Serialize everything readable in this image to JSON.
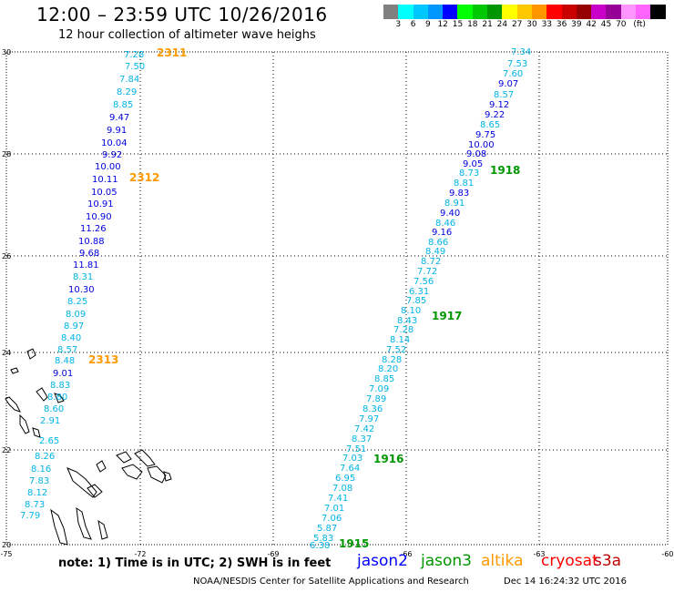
{
  "header": {
    "title": "12:00 – 23:59 UTC 10/26/2016",
    "subtitle": "12 hour collection of altimeter wave heighs"
  },
  "colorbar": {
    "colors": [
      "#808080",
      "#00ffff",
      "#00c8ff",
      "#0096ff",
      "#0000ff",
      "#00ff00",
      "#00c800",
      "#009600",
      "#ffff00",
      "#ffc800",
      "#ff9600",
      "#ff0000",
      "#c80000",
      "#960000",
      "#c800c8",
      "#960096",
      "#ff96ff",
      "#ff64ff",
      "#000000"
    ],
    "labels": [
      "3",
      "6",
      "9",
      "12",
      "15",
      "18",
      "21",
      "24",
      "27",
      "30",
      "33",
      "36",
      "39",
      "42",
      "45",
      "70",
      "(ft)"
    ]
  },
  "axes": {
    "lat_labels": [
      "30",
      "28",
      "26",
      "24",
      "22",
      "20"
    ],
    "lon_labels": [
      "-75",
      "-72",
      "-69",
      "-66",
      "-63",
      "-60"
    ]
  },
  "swh_colors": {
    "low": "#00b4e6",
    "mid": "#0000e0"
  },
  "passes": [
    {
      "name": "west_track",
      "swh": [
        "7.28",
        "7.50",
        "7.84",
        "8.29",
        "8.85",
        "9.47",
        "9.91",
        "10.04",
        "9.92",
        "10.00",
        "10.11",
        "10.05",
        "10.91",
        "10.90",
        "11.26",
        "10.88",
        "9.68",
        "11.81",
        "8.31",
        "10.30",
        "8.25",
        "8.09",
        "8.97",
        "8.40",
        "8.57",
        "8.48",
        "9.01",
        "8.83",
        "8.80",
        "8.60",
        "2.91",
        "2.65",
        "8.26",
        "8.16",
        "7.83",
        "8.12",
        "8.73",
        "7.79"
      ]
    },
    {
      "name": "east_track",
      "swh": [
        "7.34",
        "7.53",
        "7.60",
        "9.07",
        "8.57",
        "9.12",
        "9.22",
        "8.65",
        "9.75",
        "10.00",
        "9.08",
        "9.05",
        "8.73",
        "8.81",
        "9.83",
        "8.91",
        "9.40",
        "8.46",
        "9.16",
        "8.66",
        "8.49",
        "8.72",
        "7.72",
        "7.56",
        "6.31",
        "7.85",
        "8.10",
        "8.43",
        "7.28",
        "8.14",
        "7.52",
        "8.28",
        "8.20",
        "8.85",
        "7.09",
        "7.89",
        "8.36",
        "7.97",
        "7.42",
        "8.37",
        "7.51",
        "7.03",
        "7.64",
        "6.95",
        "7.08",
        "7.41",
        "7.01",
        "7.06",
        "5.87",
        "5.83",
        "6.38",
        "5.93"
      ]
    }
  ],
  "time_labels": [
    {
      "text": "2311",
      "color": "#ff9900"
    },
    {
      "text": "2312",
      "color": "#ff9900"
    },
    {
      "text": "2313",
      "color": "#ff9900"
    },
    {
      "text": "1918",
      "color": "#009600"
    },
    {
      "text": "1917",
      "color": "#009600"
    },
    {
      "text": "1916",
      "color": "#009600"
    },
    {
      "text": "1915",
      "color": "#009600"
    }
  ],
  "footer": {
    "note": "note: 1) Time is in UTC; 2) SWH is in feet",
    "credit": "NOAA/NESDIS Center for Satellite Applications and Research",
    "stamp": "Dec 14 16:24:32 UTC 2016"
  },
  "satellites": [
    {
      "name": "jason2",
      "color": "#0000ff"
    },
    {
      "name": "jason3",
      "color": "#009600"
    },
    {
      "name": "altika",
      "color": "#ff9900"
    },
    {
      "name": "cryosat",
      "color": "#ff0000"
    },
    {
      "name": "s3a",
      "color": "#c00000"
    }
  ]
}
